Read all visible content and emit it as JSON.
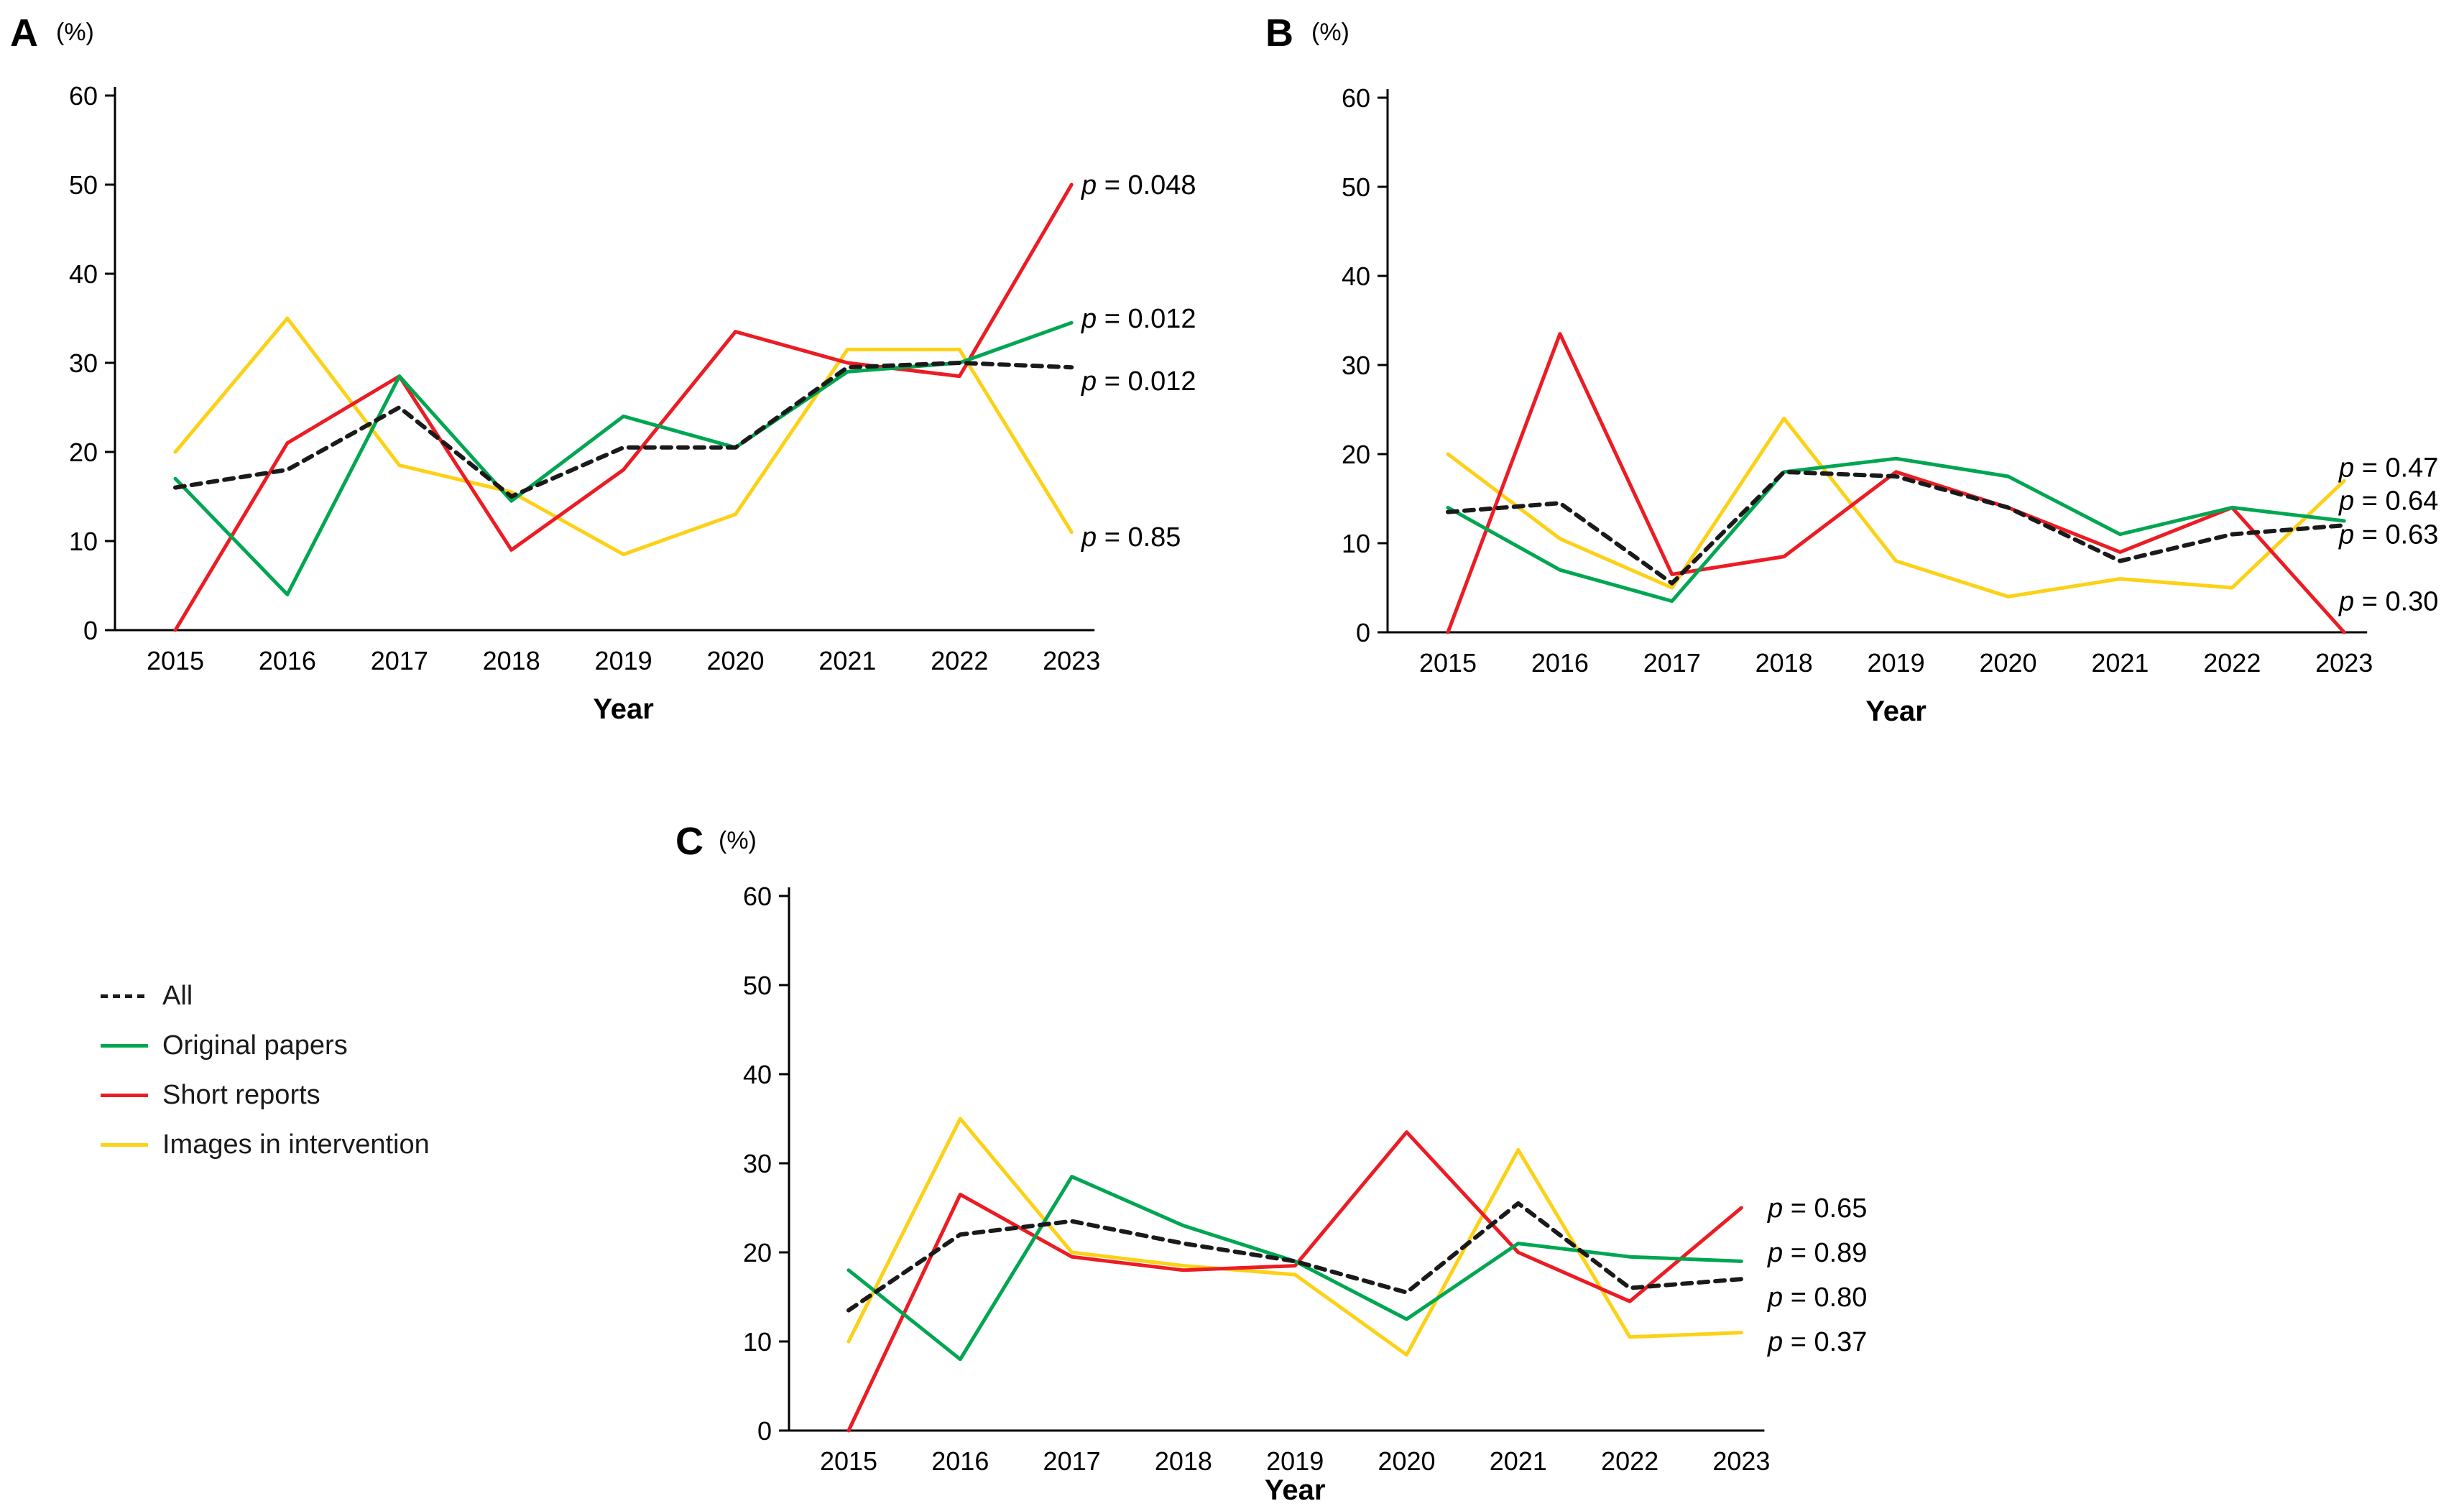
{
  "figure": {
    "colors": {
      "all": "#1a1a1a",
      "original_papers": "#00a651",
      "short_reports": "#ec1c24",
      "images_in_intervention": "#fcd116"
    },
    "legend": [
      {
        "key": "all",
        "label": "All",
        "dashed": true
      },
      {
        "key": "original_papers",
        "label": "Original papers",
        "dashed": false
      },
      {
        "key": "short_reports",
        "label": "Short reports",
        "dashed": false
      },
      {
        "key": "images_in_intervention",
        "label": "Images in intervention",
        "dashed": false
      }
    ]
  },
  "chart_data": [
    {
      "id": "A",
      "type": "line",
      "panel_label": "A",
      "unit_label": "(%)",
      "xlabel": "Year",
      "ylim": [
        0,
        60
      ],
      "ytick_step": 10,
      "grid": false,
      "x": [
        2015,
        2016,
        2017,
        2018,
        2019,
        2020,
        2021,
        2022,
        2023
      ],
      "series": [
        {
          "key": "all",
          "name": "All",
          "dashed": true,
          "values": [
            16,
            18,
            25,
            15,
            20.5,
            20.5,
            29.5,
            30,
            29.5
          ]
        },
        {
          "key": "original_papers",
          "name": "Original papers",
          "dashed": false,
          "values": [
            17,
            4,
            28.5,
            14.5,
            24,
            20.5,
            29,
            30,
            34.5
          ]
        },
        {
          "key": "short_reports",
          "name": "Short reports",
          "dashed": false,
          "values": [
            0,
            21,
            28.5,
            9,
            18,
            33.5,
            30,
            28.5,
            50
          ]
        },
        {
          "key": "images_in_intervention",
          "name": "Images in intervention",
          "dashed": false,
          "values": [
            20,
            35,
            18.5,
            15.5,
            8.5,
            13,
            31.5,
            31.5,
            11
          ]
        }
      ],
      "p_values": [
        {
          "label": "p = 0.048",
          "series": "Short reports",
          "y": 50
        },
        {
          "label": "p = 0.012",
          "series": "Original papers",
          "y": 35
        },
        {
          "label": "p = 0.012",
          "series": "All",
          "y": 28
        },
        {
          "label": "p = 0.85",
          "series": "Images in intervention",
          "y": 10.5
        }
      ]
    },
    {
      "id": "B",
      "type": "line",
      "panel_label": "B",
      "unit_label": "(%)",
      "xlabel": "Year",
      "ylim": [
        0,
        60
      ],
      "ytick_step": 10,
      "grid": false,
      "x": [
        2015,
        2016,
        2017,
        2018,
        2019,
        2020,
        2021,
        2022,
        2023
      ],
      "series": [
        {
          "key": "all",
          "name": "All",
          "dashed": true,
          "values": [
            13.5,
            14.5,
            5.5,
            18,
            17.5,
            14,
            8,
            11,
            12
          ]
        },
        {
          "key": "original_papers",
          "name": "Original papers",
          "dashed": false,
          "values": [
            14,
            7,
            3.5,
            18,
            19.5,
            17.5,
            11,
            14,
            12.5
          ]
        },
        {
          "key": "short_reports",
          "name": "Short reports",
          "dashed": false,
          "values": [
            0,
            33.5,
            6.5,
            8.5,
            18,
            14,
            9,
            14,
            0
          ]
        },
        {
          "key": "images_in_intervention",
          "name": "Images in intervention",
          "dashed": false,
          "values": [
            20,
            10.5,
            5,
            24,
            8,
            4,
            6,
            5,
            17
          ]
        }
      ],
      "p_values": [
        {
          "label": "p = 0.47",
          "series": "Images in intervention",
          "y": 18.5
        },
        {
          "label": "p = 0.64",
          "series": "Original papers",
          "y": 14.8
        },
        {
          "label": "p = 0.63",
          "series": "All",
          "y": 11
        },
        {
          "label": "p = 0.30",
          "series": "Short reports",
          "y": 3.5
        }
      ]
    },
    {
      "id": "C",
      "type": "line",
      "panel_label": "C",
      "unit_label": "(%)",
      "xlabel": "Year",
      "ylim": [
        0,
        60
      ],
      "ytick_step": 10,
      "grid": false,
      "x": [
        2015,
        2016,
        2017,
        2018,
        2019,
        2020,
        2021,
        2022,
        2023
      ],
      "series": [
        {
          "key": "all",
          "name": "All",
          "dashed": true,
          "values": [
            13.5,
            22,
            23.5,
            21,
            19,
            15.5,
            25.5,
            16,
            17
          ]
        },
        {
          "key": "original_papers",
          "name": "Original papers",
          "dashed": false,
          "values": [
            18,
            8,
            28.5,
            23,
            19,
            12.5,
            21,
            19.5,
            19
          ]
        },
        {
          "key": "short_reports",
          "name": "Short reports",
          "dashed": false,
          "values": [
            0,
            26.5,
            19.5,
            18,
            18.5,
            33.5,
            20,
            14.5,
            25
          ]
        },
        {
          "key": "images_in_intervention",
          "name": "Images in intervention",
          "dashed": false,
          "values": [
            10,
            35,
            20,
            18.5,
            17.5,
            8.5,
            31.5,
            10.5,
            11
          ]
        }
      ],
      "p_values": [
        {
          "label": "p = 0.65",
          "series": "Short reports",
          "y": 25
        },
        {
          "label": "p = 0.89",
          "series": "Original papers",
          "y": 20
        },
        {
          "label": "p = 0.80",
          "series": "All",
          "y": 15
        },
        {
          "label": "p = 0.37",
          "series": "Images in intervention",
          "y": 10
        }
      ]
    }
  ]
}
